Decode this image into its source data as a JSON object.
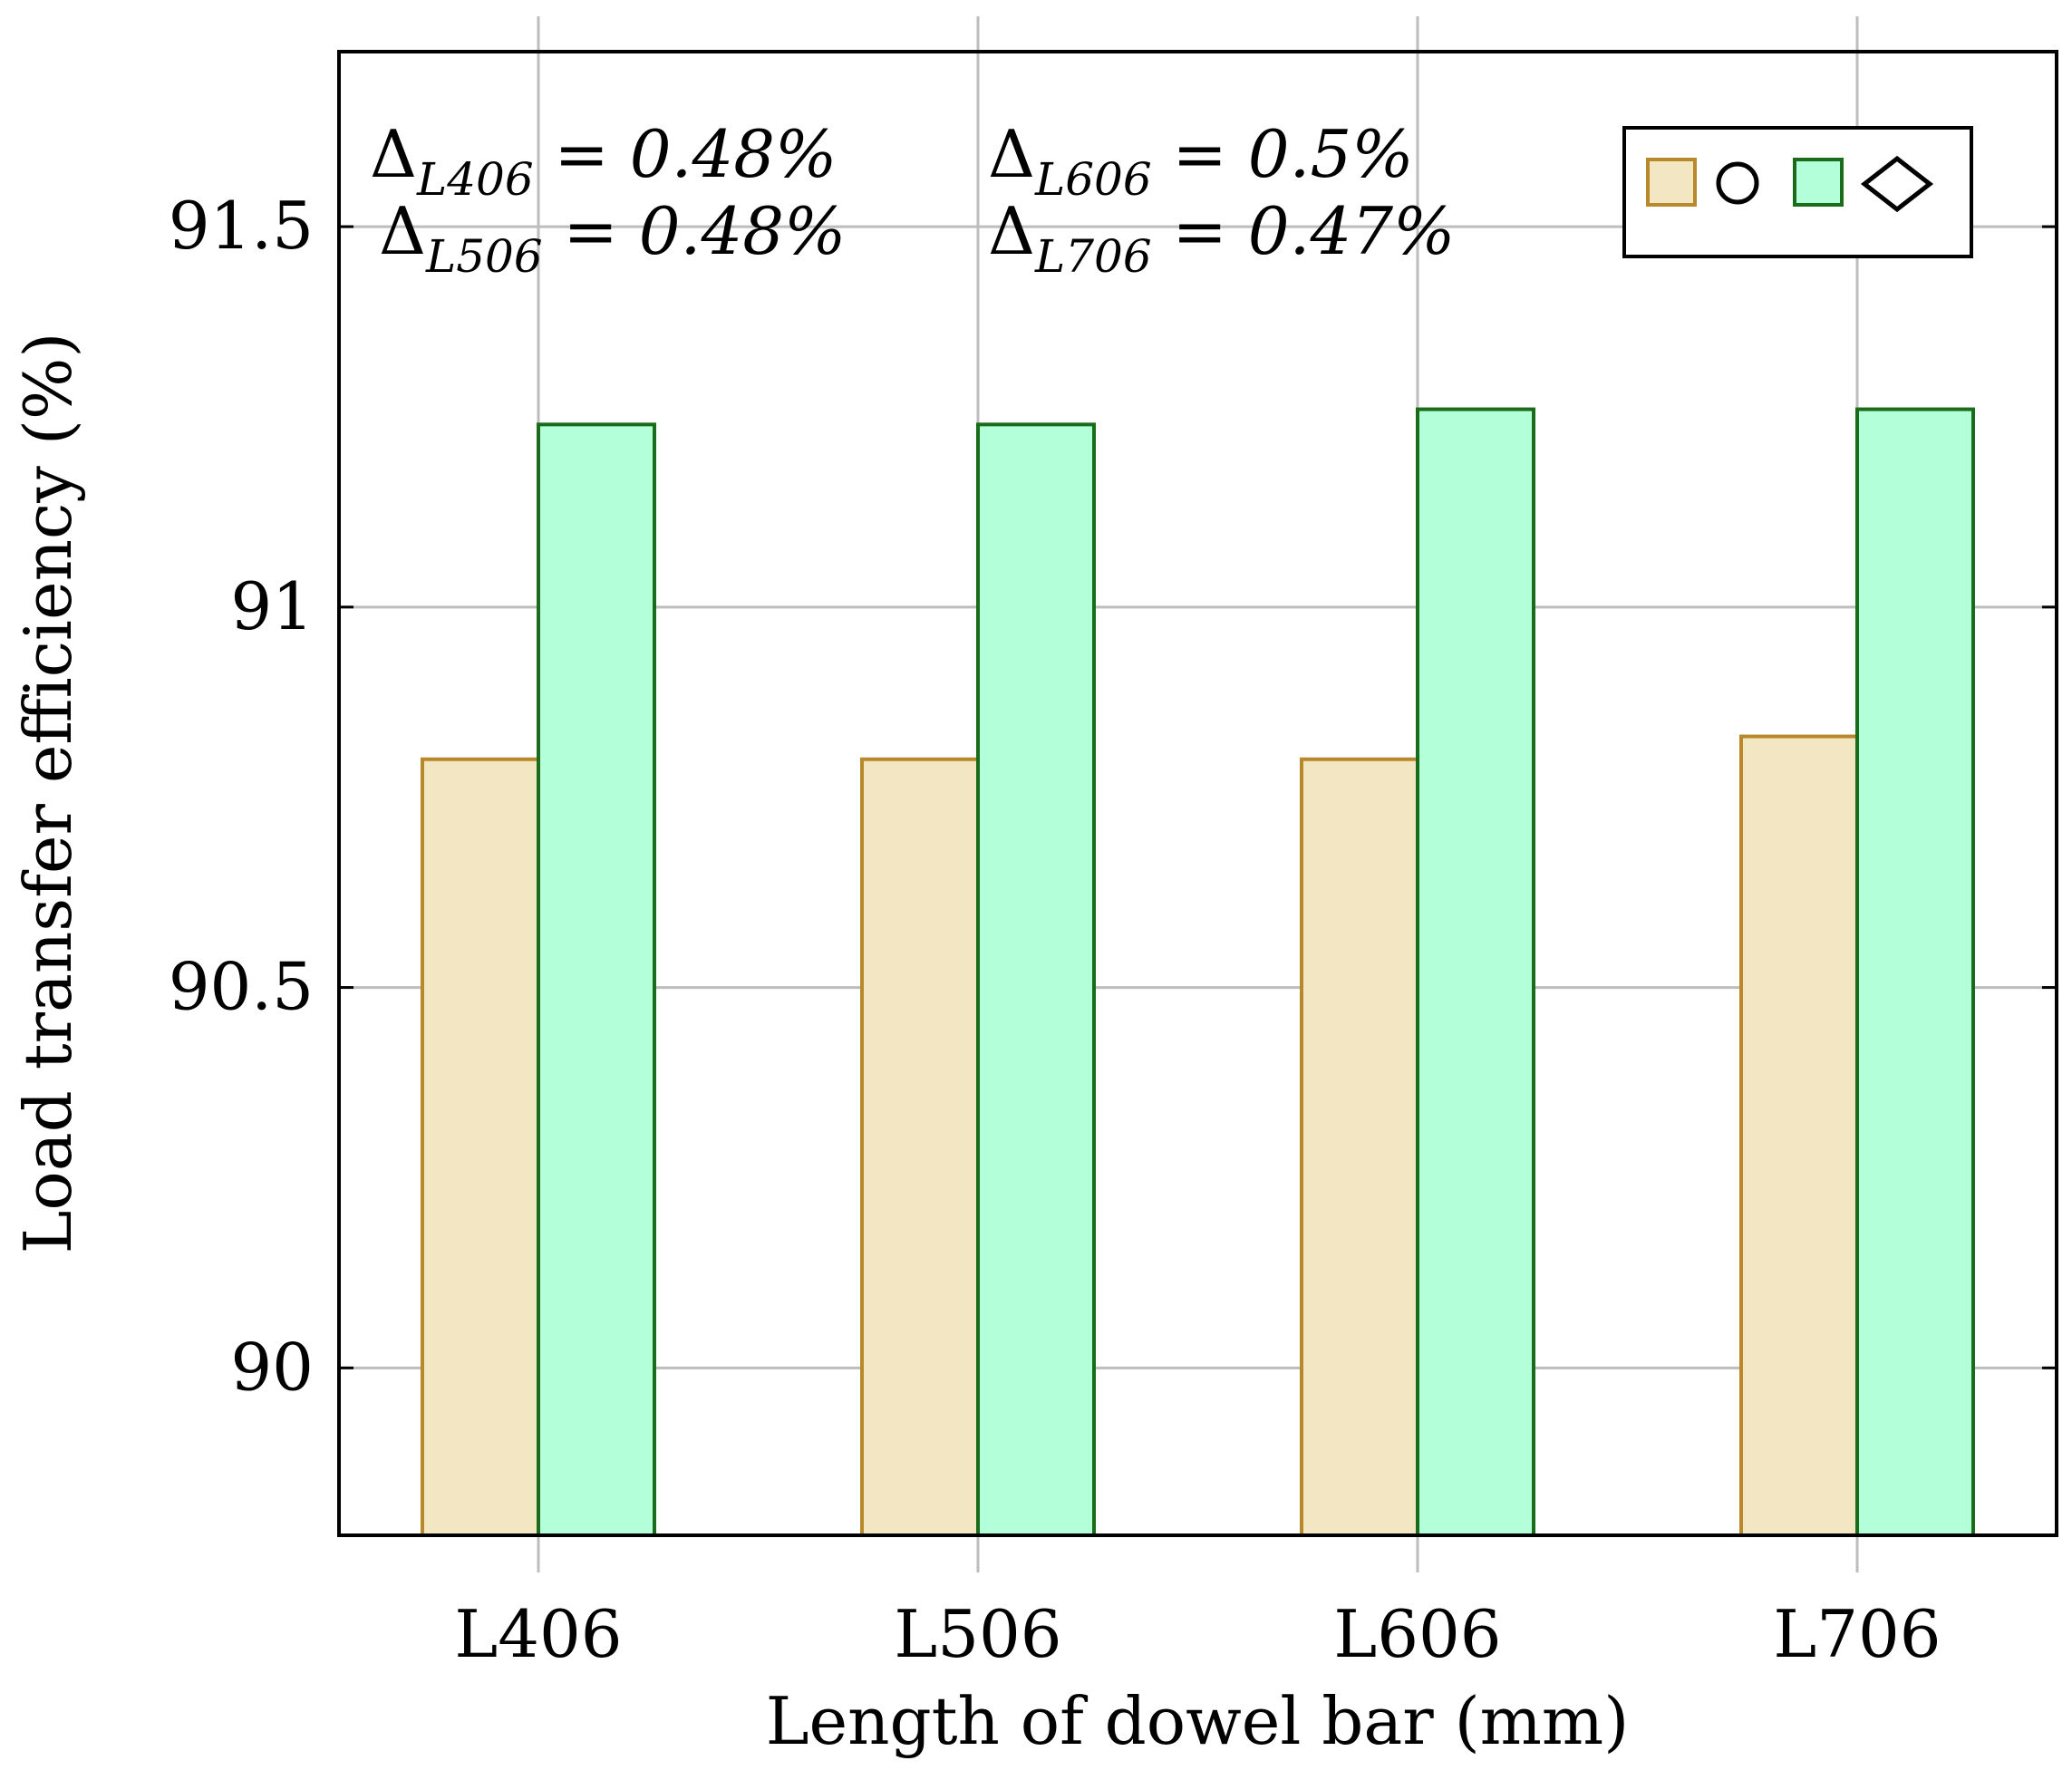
{
  "chart_data": {
    "type": "bar",
    "title": "",
    "xlabel": "Length of dowel bar (mm)",
    "ylabel": "Load transfer efficiency (%)",
    "categories": [
      "L406",
      "L506",
      "L606",
      "L706"
    ],
    "ylim": [
      89.78,
      91.73
    ],
    "yticks": [
      90,
      90.5,
      91,
      91.5
    ],
    "ytick_labels": [
      "90",
      "90.5",
      "91",
      "91.5"
    ],
    "grid": true,
    "legend_position": "top-right",
    "series": [
      {
        "name": "circle",
        "marker": "circle",
        "fill": "#f2e6c3",
        "stroke": "#b8892a",
        "values": [
          90.8,
          90.8,
          90.8,
          90.83
        ]
      },
      {
        "name": "diamond",
        "marker": "diamond",
        "fill": "#b3ffda",
        "stroke": "#1a6b1a",
        "values": [
          91.24,
          91.24,
          91.26,
          91.26
        ]
      }
    ],
    "annotations": [
      {
        "delta": "Δ",
        "sub": "L406",
        "rest": " = 0.48%"
      },
      {
        "delta": "Δ",
        "sub": "L506",
        "rest": " = 0.48%"
      },
      {
        "delta": "Δ",
        "sub": "L606",
        "rest": " = 0.5%"
      },
      {
        "delta": "Δ",
        "sub": "L706",
        "rest": " = 0.47%"
      }
    ]
  }
}
